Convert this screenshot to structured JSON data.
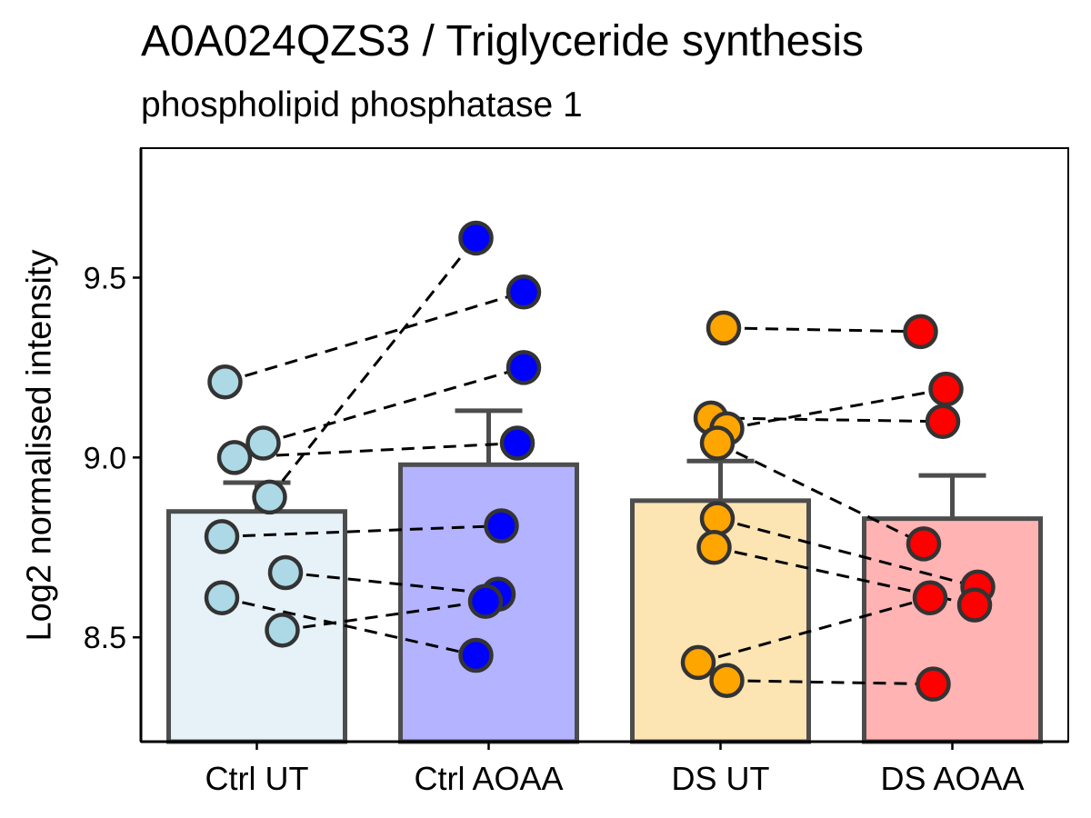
{
  "chart_data": {
    "type": "bar",
    "title": "A0A024QZS3 / Triglyceride synthesis",
    "subtitle": "phospholipid phosphatase 1",
    "xlabel": "",
    "ylabel": "Log2 normalised intensity",
    "ylim": [
      8.21,
      9.86
    ],
    "yticks": [
      8.5,
      9.0,
      9.5
    ],
    "ytick_labels": [
      "8.5",
      "9.0",
      "9.5"
    ],
    "categories": [
      "Ctrl UT",
      "Ctrl AOAA",
      "DS UT",
      "DS AOAA"
    ],
    "grid": false,
    "legend": "none",
    "bars": [
      {
        "category": "Ctrl UT",
        "mean": 8.85,
        "error_upper": 8.93,
        "fill": "#E6F1F8",
        "point_color": "#ADD8E6"
      },
      {
        "category": "Ctrl AOAA",
        "mean": 8.98,
        "error_upper": 9.13,
        "fill": "#B3B3FF",
        "point_color": "#0000FF"
      },
      {
        "category": "DS UT",
        "mean": 8.88,
        "error_upper": 8.99,
        "fill": "#FCE4B3",
        "point_color": "#FFA500"
      },
      {
        "category": "DS AOAA",
        "mean": 8.83,
        "error_upper": 8.95,
        "fill": "#FFB3B3",
        "point_color": "#FF0000"
      }
    ],
    "points": [
      [
        {
          "j": -0.5,
          "y": 9.21
        },
        {
          "j": 0.1,
          "y": 9.04
        },
        {
          "j": -0.35,
          "y": 9.0
        },
        {
          "j": 0.2,
          "y": 8.89
        },
        {
          "j": -0.55,
          "y": 8.78
        },
        {
          "j": 0.45,
          "y": 8.68
        },
        {
          "j": -0.55,
          "y": 8.61
        },
        {
          "j": 0.4,
          "y": 8.52
        }
      ],
      [
        {
          "j": -0.2,
          "y": 9.61
        },
        {
          "j": 0.55,
          "y": 9.46
        },
        {
          "j": 0.55,
          "y": 9.25
        },
        {
          "j": 0.45,
          "y": 9.04
        },
        {
          "j": 0.2,
          "y": 8.81
        },
        {
          "j": 0.15,
          "y": 8.62
        },
        {
          "j": -0.05,
          "y": 8.6
        },
        {
          "j": -0.2,
          "y": 8.45
        }
      ],
      [
        {
          "j": 0.05,
          "y": 9.36
        },
        {
          "j": -0.15,
          "y": 9.11
        },
        {
          "j": 0.1,
          "y": 9.08
        },
        {
          "j": -0.05,
          "y": 9.04
        },
        {
          "j": -0.05,
          "y": 8.83
        },
        {
          "j": -0.1,
          "y": 8.75
        },
        {
          "j": -0.35,
          "y": 8.43
        },
        {
          "j": 0.1,
          "y": 8.38
        }
      ],
      [
        {
          "j": -0.5,
          "y": 9.35
        },
        {
          "j": -0.1,
          "y": 9.19
        },
        {
          "j": -0.15,
          "y": 9.1
        },
        {
          "j": -0.45,
          "y": 8.76
        },
        {
          "j": 0.4,
          "y": 8.64
        },
        {
          "j": 0.35,
          "y": 8.59
        },
        {
          "j": -0.35,
          "y": 8.61
        },
        {
          "j": -0.3,
          "y": 8.37
        }
      ]
    ],
    "pairs": [
      [
        [
          0,
          0
        ],
        [
          1,
          1
        ]
      ],
      [
        [
          0,
          3
        ],
        [
          1,
          0
        ]
      ],
      [
        [
          0,
          1
        ],
        [
          1,
          2
        ]
      ],
      [
        [
          0,
          2
        ],
        [
          1,
          3
        ]
      ],
      [
        [
          0,
          4
        ],
        [
          1,
          4
        ]
      ],
      [
        [
          0,
          5
        ],
        [
          1,
          5
        ]
      ],
      [
        [
          0,
          6
        ],
        [
          1,
          7
        ]
      ],
      [
        [
          0,
          7
        ],
        [
          1,
          6
        ]
      ],
      [
        [
          2,
          0
        ],
        [
          3,
          0
        ]
      ],
      [
        [
          2,
          2
        ],
        [
          3,
          1
        ]
      ],
      [
        [
          2,
          1
        ],
        [
          3,
          2
        ]
      ],
      [
        [
          2,
          3
        ],
        [
          3,
          3
        ]
      ],
      [
        [
          2,
          4
        ],
        [
          3,
          4
        ]
      ],
      [
        [
          2,
          5
        ],
        [
          3,
          5
        ]
      ],
      [
        [
          2,
          6
        ],
        [
          3,
          6
        ]
      ],
      [
        [
          2,
          7
        ],
        [
          3,
          7
        ]
      ]
    ]
  }
}
